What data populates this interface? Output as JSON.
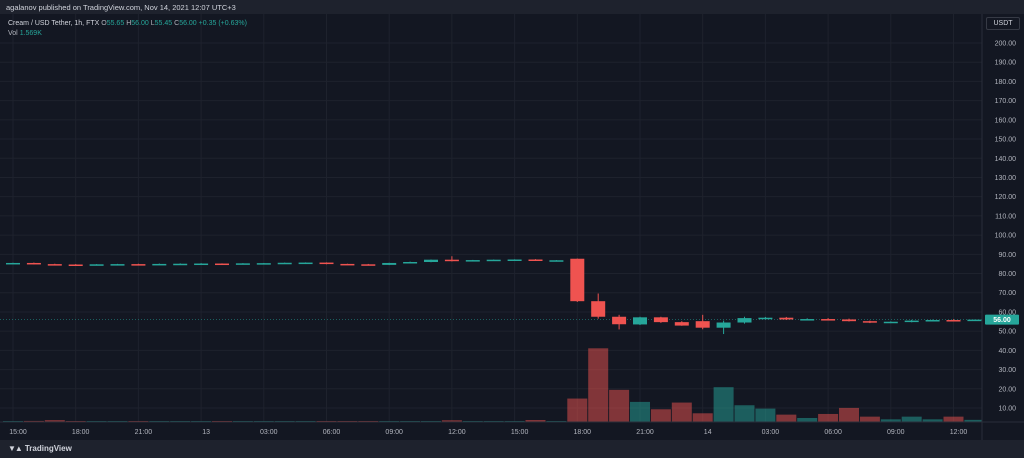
{
  "header": {
    "published": "agalanov published on TradingView.com, Nov 14, 2021 12:07 UTC+3"
  },
  "legend": {
    "title": "Cream / USD Tether, 1h, FTX",
    "o_label": "O",
    "o_value": "55.65",
    "h_label": "H",
    "h_value": "56.00",
    "l_label": "L",
    "l_value": "55.45",
    "c_label": "C",
    "c_value": "56.00",
    "change": "+0.35 (+0.63%)",
    "vol_label": "Vol",
    "vol_value": "1.569K"
  },
  "price_scale": {
    "currency": "USDT",
    "last_price": "56.00"
  },
  "footer": {
    "brand": "TradingView",
    "logo_icon": "tradingview-logo-icon"
  },
  "colors": {
    "up": "#26a69a",
    "down": "#ef5350",
    "background": "#131722"
  },
  "chart_data": {
    "type": "candlestick",
    "interval": "1h",
    "ylim": [
      0,
      205
    ],
    "y_ticks": [
      "10.00",
      "20.00",
      "30.00",
      "40.00",
      "50.00",
      "60.00",
      "70.00",
      "80.00",
      "90.00",
      "100.00",
      "110.00",
      "120.00",
      "130.00",
      "140.00",
      "150.00",
      "160.00",
      "170.00",
      "180.00",
      "190.00",
      "200.00"
    ],
    "x_ticks": [
      {
        "label": "15:00",
        "i": 0
      },
      {
        "label": "18:00",
        "i": 3
      },
      {
        "label": "21:00",
        "i": 6
      },
      {
        "label": "13",
        "i": 9
      },
      {
        "label": "03:00",
        "i": 12
      },
      {
        "label": "06:00",
        "i": 15
      },
      {
        "label": "09:00",
        "i": 18
      },
      {
        "label": "12:00",
        "i": 21
      },
      {
        "label": "15:00",
        "i": 24
      },
      {
        "label": "18:00",
        "i": 27
      },
      {
        "label": "21:00",
        "i": 30
      },
      {
        "label": "14",
        "i": 33
      },
      {
        "label": "03:00",
        "i": 36
      },
      {
        "label": "06:00",
        "i": 39
      },
      {
        "label": "09:00",
        "i": 42
      },
      {
        "label": "12:00",
        "i": 45
      }
    ],
    "candles": [
      {
        "o": 85.3,
        "h": 85.6,
        "l": 85.1,
        "c": 85.5,
        "v": 0.6
      },
      {
        "o": 85.5,
        "h": 85.7,
        "l": 84.7,
        "c": 84.9,
        "v": 0.8
      },
      {
        "o": 84.9,
        "h": 85.1,
        "l": 84.5,
        "c": 84.7,
        "v": 1.4
      },
      {
        "o": 84.7,
        "h": 84.9,
        "l": 84.3,
        "c": 84.5,
        "v": 0.6
      },
      {
        "o": 84.5,
        "h": 84.9,
        "l": 84.4,
        "c": 84.8,
        "v": 0.5
      },
      {
        "o": 84.8,
        "h": 85.0,
        "l": 84.6,
        "c": 84.9,
        "v": 0.4
      },
      {
        "o": 84.9,
        "h": 85.1,
        "l": 84.6,
        "c": 84.8,
        "v": 0.5
      },
      {
        "o": 84.8,
        "h": 85.2,
        "l": 84.7,
        "c": 85.0,
        "v": 0.4
      },
      {
        "o": 85.0,
        "h": 85.3,
        "l": 84.8,
        "c": 85.1,
        "v": 0.4
      },
      {
        "o": 85.1,
        "h": 85.4,
        "l": 84.9,
        "c": 85.2,
        "v": 0.4
      },
      {
        "o": 85.2,
        "h": 85.3,
        "l": 84.9,
        "c": 85.0,
        "v": 0.4
      },
      {
        "o": 85.0,
        "h": 85.4,
        "l": 84.9,
        "c": 85.3,
        "v": 0.4
      },
      {
        "o": 85.3,
        "h": 85.5,
        "l": 85.0,
        "c": 85.4,
        "v": 0.5
      },
      {
        "o": 85.4,
        "h": 85.7,
        "l": 85.2,
        "c": 85.6,
        "v": 0.4
      },
      {
        "o": 85.6,
        "h": 85.8,
        "l": 85.4,
        "c": 85.7,
        "v": 0.4
      },
      {
        "o": 85.7,
        "h": 85.8,
        "l": 84.8,
        "c": 85.0,
        "v": 0.6
      },
      {
        "o": 85.0,
        "h": 85.1,
        "l": 84.6,
        "c": 84.8,
        "v": 0.4
      },
      {
        "o": 84.8,
        "h": 85.0,
        "l": 84.3,
        "c": 84.5,
        "v": 0.4
      },
      {
        "o": 84.5,
        "h": 85.6,
        "l": 84.4,
        "c": 85.5,
        "v": 0.6
      },
      {
        "o": 85.5,
        "h": 86.2,
        "l": 85.3,
        "c": 86.0,
        "v": 0.4
      },
      {
        "o": 86.0,
        "h": 87.3,
        "l": 85.9,
        "c": 87.2,
        "v": 0.6
      },
      {
        "o": 87.2,
        "h": 89.0,
        "l": 86.3,
        "c": 86.6,
        "v": 1.3
      },
      {
        "o": 86.6,
        "h": 87.1,
        "l": 86.4,
        "c": 87.0,
        "v": 0.5
      },
      {
        "o": 87.0,
        "h": 87.3,
        "l": 86.8,
        "c": 87.2,
        "v": 0.3
      },
      {
        "o": 87.2,
        "h": 87.4,
        "l": 87.0,
        "c": 87.3,
        "v": 0.4
      },
      {
        "o": 87.3,
        "h": 87.5,
        "l": 86.6,
        "c": 86.8,
        "v": 1.5
      },
      {
        "o": 86.8,
        "h": 87.0,
        "l": 86.6,
        "c": 86.9,
        "v": 0.3
      },
      {
        "o": 87.7,
        "h": 87.8,
        "l": 65.2,
        "c": 65.6,
        "v": 17.5
      },
      {
        "o": 65.6,
        "h": 69.6,
        "l": 56.5,
        "c": 57.5,
        "v": 55.0
      },
      {
        "o": 57.5,
        "h": 58.5,
        "l": 50.9,
        "c": 53.6,
        "v": 24.0
      },
      {
        "o": 53.5,
        "h": 57.5,
        "l": 53.2,
        "c": 57.2,
        "v": 15.0
      },
      {
        "o": 57.2,
        "h": 57.5,
        "l": 54.3,
        "c": 54.7,
        "v": 9.5
      },
      {
        "o": 54.7,
        "h": 55.2,
        "l": 52.8,
        "c": 52.9,
        "v": 14.5
      },
      {
        "o": 55.2,
        "h": 58.5,
        "l": 51.0,
        "c": 51.8,
        "v": 6.5
      },
      {
        "o": 51.8,
        "h": 55.5,
        "l": 48.5,
        "c": 54.5,
        "v": 26.0
      },
      {
        "o": 54.5,
        "h": 57.5,
        "l": 53.9,
        "c": 56.8,
        "v": 12.5
      },
      {
        "o": 56.8,
        "h": 57.4,
        "l": 56.2,
        "c": 57.0,
        "v": 10.0
      },
      {
        "o": 57.0,
        "h": 57.4,
        "l": 55.8,
        "c": 56.1,
        "v": 5.5
      },
      {
        "o": 56.1,
        "h": 56.7,
        "l": 55.7,
        "c": 56.3,
        "v": 3.0
      },
      {
        "o": 56.3,
        "h": 56.8,
        "l": 55.9,
        "c": 56.1,
        "v": 6.0
      },
      {
        "o": 56.1,
        "h": 56.5,
        "l": 55.0,
        "c": 55.2,
        "v": 10.5
      },
      {
        "o": 55.2,
        "h": 55.5,
        "l": 54.2,
        "c": 54.5,
        "v": 4.0
      },
      {
        "o": 54.5,
        "h": 55.1,
        "l": 54.2,
        "c": 54.9,
        "v": 2.0
      },
      {
        "o": 54.9,
        "h": 55.9,
        "l": 54.6,
        "c": 55.5,
        "v": 4.0
      },
      {
        "o": 55.5,
        "h": 56.0,
        "l": 55.2,
        "c": 55.8,
        "v": 2.0
      },
      {
        "o": 55.8,
        "h": 56.2,
        "l": 55.4,
        "c": 55.6,
        "v": 4.0
      },
      {
        "o": 55.65,
        "h": 56.0,
        "l": 55.45,
        "c": 56.0,
        "v": 1.6
      }
    ]
  }
}
